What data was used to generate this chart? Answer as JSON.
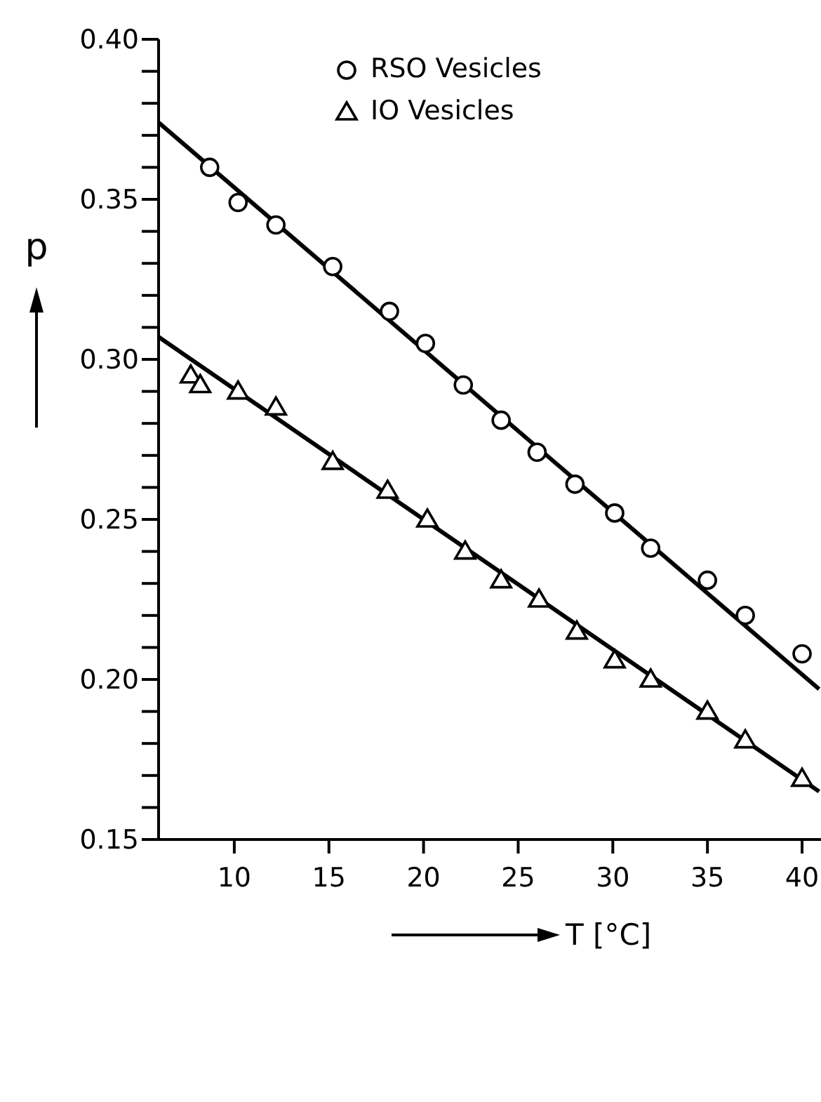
{
  "chart_data": {
    "type": "scatter",
    "xlabel": "T [°C]",
    "ylabel": "p",
    "xlim": [
      6,
      41
    ],
    "xticks": [
      10,
      15,
      20,
      25,
      30,
      35,
      40
    ],
    "ylim": [
      0.15,
      0.4
    ],
    "yticks": [
      0.15,
      {
        "value": 0.16,
        "label": null
      },
      {
        "value": 0.17,
        "label": null
      },
      {
        "value": 0.18,
        "label": null
      },
      {
        "value": 0.19,
        "label": null
      },
      {
        "value": 0.2,
        "label": "0.20"
      },
      {
        "value": 0.21,
        "label": null
      },
      {
        "value": 0.22,
        "label": null
      },
      {
        "value": 0.23,
        "label": null
      },
      {
        "value": 0.24,
        "label": null
      },
      0.25,
      {
        "value": 0.26,
        "label": null
      },
      {
        "value": 0.27,
        "label": null
      },
      {
        "value": 0.28,
        "label": null
      },
      {
        "value": 0.29,
        "label": null
      },
      {
        "value": 0.3,
        "label": "0.30"
      },
      {
        "value": 0.31,
        "label": null
      },
      {
        "value": 0.32,
        "label": null
      },
      {
        "value": 0.33,
        "label": null
      },
      {
        "value": 0.34,
        "label": null
      },
      0.35,
      {
        "value": 0.36,
        "label": null
      },
      {
        "value": 0.37,
        "label": null
      },
      {
        "value": 0.38,
        "label": null
      },
      {
        "value": 0.39,
        "label": null
      },
      {
        "value": 0.4,
        "label": "0.40"
      }
    ],
    "legend": "top",
    "series": [
      {
        "name": "RSO Vesicles",
        "marker": "circle",
        "color": "#000000",
        "x": [
          8.7,
          10.2,
          12.2,
          15.2,
          18.2,
          20.1,
          22.1,
          24.1,
          26.0,
          28.0,
          30.1,
          32.0,
          35.0,
          37.0,
          40.0
        ],
        "values": [
          0.36,
          0.349,
          0.342,
          0.329,
          0.315,
          0.305,
          0.292,
          0.281,
          0.271,
          0.261,
          0.252,
          0.241,
          0.231,
          0.22,
          0.208
        ]
      },
      {
        "name": "IO Vesicles",
        "marker": "triangle",
        "color": "#000000",
        "x": [
          7.7,
          8.2,
          10.2,
          12.2,
          15.2,
          18.1,
          20.2,
          22.2,
          24.1,
          26.1,
          28.1,
          30.1,
          32.0,
          35.0,
          37.0,
          40.0
        ],
        "values": [
          0.295,
          0.292,
          0.29,
          0.285,
          0.268,
          0.259,
          0.25,
          0.24,
          0.231,
          0.225,
          0.215,
          0.206,
          0.2,
          0.19,
          0.181,
          0.169
        ]
      },
      {
        "type": "line",
        "marker": "none",
        "line_style": "solid",
        "color": "#000000",
        "x": [
          6,
          40.9
        ],
        "values": [
          0.374,
          0.197
        ]
      },
      {
        "type": "line",
        "marker": "none",
        "line_style": "solid",
        "color": "#000000",
        "x": [
          6,
          40.9
        ],
        "values": [
          0.307,
          0.165
        ]
      }
    ]
  }
}
